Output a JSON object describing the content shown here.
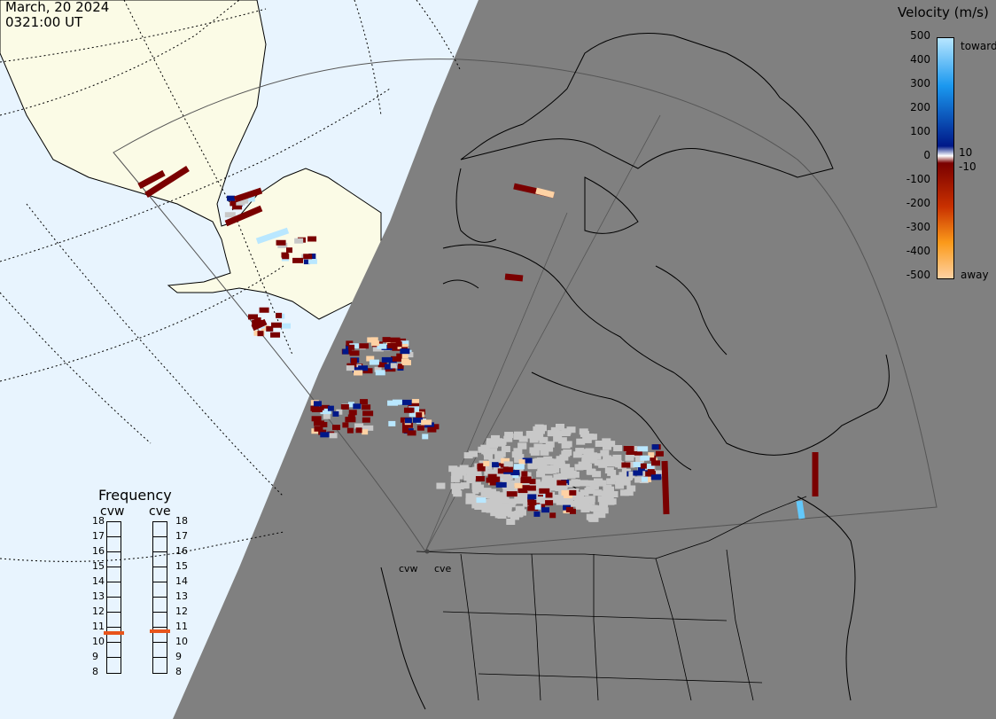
{
  "header": {
    "date": "March, 20 2024",
    "time": "0321:00 UT"
  },
  "colorbar": {
    "title": "Velocity (m/s)",
    "ticks": [
      "500",
      "400",
      "300",
      "200",
      "100",
      "10",
      "0",
      "-10",
      "-100",
      "-200",
      "-300",
      "-400",
      "-500"
    ],
    "toward_label": "toward",
    "away_label": "away",
    "colors": [
      "#b9e7ff",
      "#62c8fb",
      "#1a98ef",
      "#0562d0",
      "#0030a0",
      "#001888",
      "#ffffff",
      "#7a0000",
      "#9a0a00",
      "#c83000",
      "#e86200",
      "#fb9a1a",
      "#fed2a4"
    ]
  },
  "frequency": {
    "title": "Frequency",
    "radars": [
      {
        "name": "cvw",
        "levels": [
          "18",
          "17",
          "16",
          "15",
          "14",
          "13",
          "12",
          "11",
          "10",
          "9",
          "8"
        ],
        "selected": 10.6
      },
      {
        "name": "cve",
        "levels": [
          "18",
          "17",
          "16",
          "15",
          "14",
          "13",
          "12",
          "11",
          "10",
          "9",
          "8"
        ],
        "selected": 10.7
      }
    ]
  },
  "sites": {
    "cvw": "cvw",
    "cve": "cve"
  },
  "colors": {
    "ocean": "#e8f4fe",
    "night": "#808080",
    "land_day": "#fbfbe6",
    "scatter_grey": "#c8c8c8"
  }
}
